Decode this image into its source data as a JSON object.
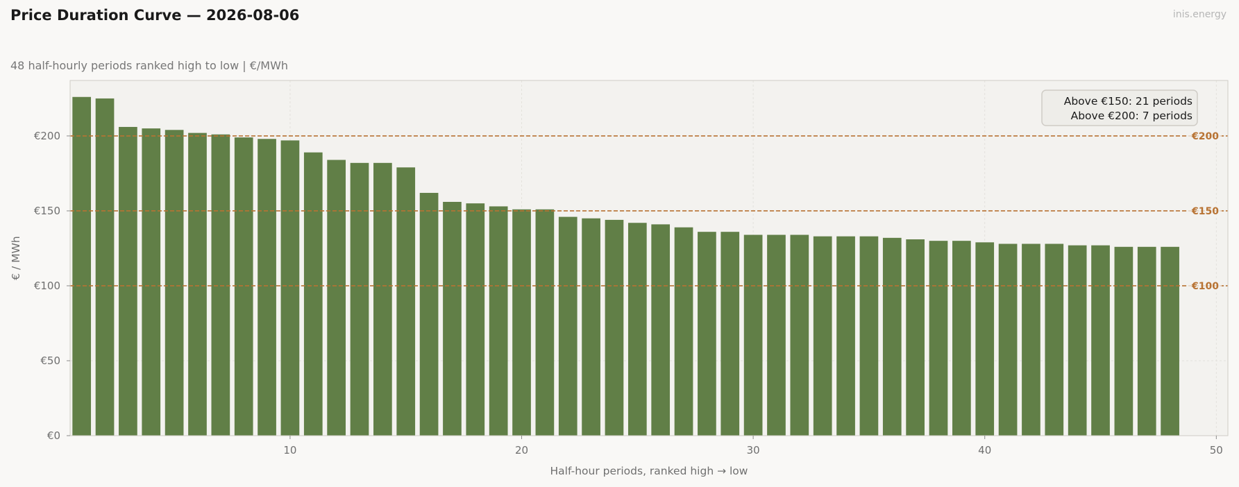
{
  "header": {
    "title": "Price Duration Curve — 2026-08-06",
    "subtitle": "48 half-hourly periods ranked high to low  |  €/MWh",
    "brand": "inis.energy"
  },
  "colors": {
    "bar": "#617f47",
    "reference_line": "#b87333",
    "plot_background": "#f3f2ef",
    "page_background": "#f9f8f6"
  },
  "chart_data": {
    "type": "bar",
    "title": "Price Duration Curve — 2026-08-06",
    "subtitle": "48 half-hourly periods ranked high to low  |  €/MWh",
    "xlabel": "Half-hour periods, ranked high → low",
    "ylabel": "€ / MWh",
    "x": [
      1,
      2,
      3,
      4,
      5,
      6,
      7,
      8,
      9,
      10,
      11,
      12,
      13,
      14,
      15,
      16,
      17,
      18,
      19,
      20,
      21,
      22,
      23,
      24,
      25,
      26,
      27,
      28,
      29,
      30,
      31,
      32,
      33,
      34,
      35,
      36,
      37,
      38,
      39,
      40,
      41,
      42,
      43,
      44,
      45,
      46,
      47,
      48
    ],
    "values": [
      226,
      225,
      206,
      205,
      204,
      202,
      201,
      199,
      198,
      197,
      189,
      184,
      182,
      182,
      179,
      162,
      156,
      155,
      153,
      151,
      151,
      146,
      145,
      144,
      142,
      141,
      139,
      136,
      136,
      134,
      134,
      134,
      133,
      133,
      133,
      132,
      131,
      130,
      130,
      129,
      128,
      128,
      128,
      127,
      127,
      126,
      126,
      126
    ],
    "xlim": [
      0.5,
      50.5
    ],
    "ylim": [
      0,
      237
    ],
    "x_ticks": [
      10,
      20,
      30,
      40,
      50
    ],
    "x_tick_labels": [
      "10",
      "20",
      "30",
      "40",
      "50"
    ],
    "y_ticks": [
      0,
      50,
      100,
      150,
      200
    ],
    "y_tick_labels": [
      "€0",
      "€50",
      "€100",
      "€150",
      "€200"
    ],
    "grid": true,
    "reference_lines": [
      {
        "y": 200,
        "label": "€200"
      },
      {
        "y": 150,
        "label": "€150"
      },
      {
        "y": 100,
        "label": "€100"
      }
    ],
    "annotation": {
      "lines": [
        "Above €150: 21 periods",
        "Above €200: 7 periods"
      ],
      "position": "top-right"
    }
  }
}
